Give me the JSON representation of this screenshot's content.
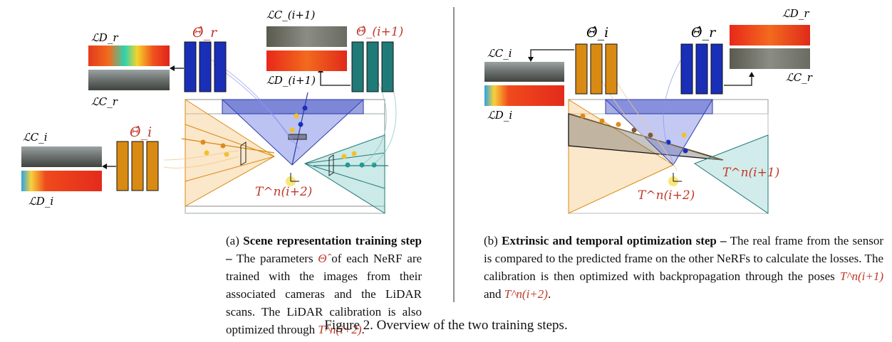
{
  "panel_a": {
    "labels": {
      "loss_depth_r": "ℒD_r",
      "loss_color_r": "ℒC_r",
      "theta_r": "Θ̂_r",
      "loss_color_next": "ℒC_(i+1)",
      "loss_depth_next": "ℒD_(i+1)",
      "theta_next": "Θ̂_(i+1)",
      "loss_color_i": "ℒC_i",
      "loss_depth_i": "ℒD_i",
      "theta_i": "Θ̂_i",
      "transform": "T^n(i+2)"
    },
    "caption_prefix": "(a)",
    "caption_bold": "Scene representation training step –",
    "caption_text_1": "The parameters",
    "caption_symbol": "Θ̂",
    "caption_text_2": "of each NeRF are trained with the images from their associated cameras and the LiDAR scans. The LiDAR calibration is also optimized through",
    "caption_transform": "T^n(i+2)",
    "caption_end": "."
  },
  "panel_b": {
    "labels": {
      "theta_i": "Θ̂_i",
      "theta_r": "Θ̂_r",
      "loss_depth_r": "ℒD_r",
      "loss_color_r": "ℒC_r",
      "loss_color_i": "ℒC_i",
      "loss_depth_i": "ℒD_i",
      "transform_next": "T^n(i+1)",
      "transform_i2": "T^n(i+2)"
    },
    "caption_prefix": "(b)",
    "caption_bold": "Extrinsic and temporal optimization step –",
    "caption_text": "The real frame from the sensor is compared to the predicted frame on the other NeRFs to calculate the losses. The calibration is then optimized with backpropagation through the poses",
    "caption_t1": "T^n(i+1)",
    "caption_and": "and",
    "caption_t2": "T^n(i+2)",
    "caption_end": "."
  },
  "figure_caption": "Figure 2. Overview of the two training steps.",
  "colors": {
    "blue_net": "#1a2fb8",
    "teal_net": "#1f7a78",
    "orange_net": "#d88a12",
    "red_text": "#c0392b"
  }
}
